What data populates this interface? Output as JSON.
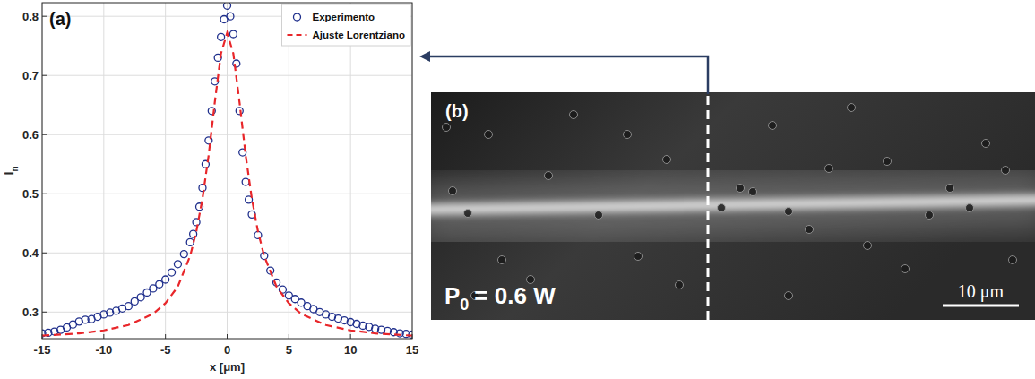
{
  "chart_data": {
    "type": "scatter",
    "annotation": "(a)",
    "x_label": "x [μm]",
    "y_label": "I",
    "y_label_subscript": "n",
    "xlim": [
      -15,
      15
    ],
    "xticks": [
      -15,
      -10,
      -5,
      0,
      5,
      10,
      15
    ],
    "ylim": [
      0.255,
      0.823
    ],
    "yticks": [
      0.3,
      0.4,
      0.5,
      0.6,
      0.7,
      0.8
    ],
    "grid": true,
    "legend": "upper right",
    "series": [
      {
        "name": "Experimento",
        "type": "scatter",
        "color": "#1f2f8c",
        "marker": "circle-open",
        "x": [
          -15,
          -14.5,
          -14,
          -13.5,
          -13,
          -12.5,
          -12,
          -11.5,
          -11,
          -10.5,
          -10,
          -9.5,
          -9,
          -8.5,
          -8,
          -7.5,
          -7,
          -6.5,
          -6,
          -5.5,
          -5,
          -4.5,
          -4,
          -3.5,
          -3,
          -2.75,
          -2.5,
          -2.25,
          -2,
          -1.75,
          -1.5,
          -1.25,
          -1,
          -0.75,
          -0.5,
          -0.25,
          0,
          0.25,
          0.5,
          0.75,
          1,
          1.25,
          1.5,
          1.75,
          2,
          2.5,
          3,
          3.5,
          4,
          4.5,
          5,
          5.5,
          6,
          6.5,
          7,
          7.5,
          8,
          8.5,
          9,
          9.5,
          10,
          10.5,
          11,
          11.5,
          12,
          12.5,
          13,
          13.5,
          14,
          14.5,
          15
        ],
        "values": [
          0.264,
          0.265,
          0.267,
          0.27,
          0.274,
          0.279,
          0.284,
          0.287,
          0.288,
          0.292,
          0.296,
          0.299,
          0.302,
          0.306,
          0.31,
          0.318,
          0.325,
          0.333,
          0.34,
          0.347,
          0.355,
          0.367,
          0.381,
          0.398,
          0.418,
          0.432,
          0.452,
          0.478,
          0.51,
          0.55,
          0.59,
          0.64,
          0.69,
          0.73,
          0.765,
          0.795,
          0.818,
          0.8,
          0.77,
          0.72,
          0.64,
          0.57,
          0.52,
          0.49,
          0.465,
          0.43,
          0.395,
          0.37,
          0.35,
          0.338,
          0.328,
          0.322,
          0.316,
          0.31,
          0.305,
          0.3,
          0.296,
          0.292,
          0.289,
          0.286,
          0.283,
          0.28,
          0.277,
          0.275,
          0.272,
          0.27,
          0.268,
          0.266,
          0.264,
          0.263,
          0.262
        ]
      },
      {
        "name": "Ajuste Lorentziano",
        "type": "line",
        "color": "#e8262a",
        "line_style": "dashed",
        "x": [
          -15,
          -12,
          -10,
          -8,
          -6,
          -5,
          -4,
          -3,
          -2.5,
          -2,
          -1.5,
          -1,
          -0.5,
          0,
          0.5,
          1,
          1.5,
          2,
          2.5,
          3,
          4,
          5,
          6,
          8,
          10,
          12,
          15
        ],
        "values": [
          0.26,
          0.264,
          0.269,
          0.278,
          0.297,
          0.315,
          0.343,
          0.395,
          0.436,
          0.492,
          0.565,
          0.655,
          0.737,
          0.772,
          0.737,
          0.655,
          0.565,
          0.492,
          0.436,
          0.395,
          0.343,
          0.315,
          0.297,
          0.278,
          0.269,
          0.264,
          0.26
        ]
      }
    ]
  },
  "image_panel": {
    "label": "(b)",
    "power_symbol": "P",
    "power_subscript": "0",
    "power_value": "= 0.6 W",
    "scale_bar": {
      "value": 10,
      "label": "10 μm"
    }
  }
}
